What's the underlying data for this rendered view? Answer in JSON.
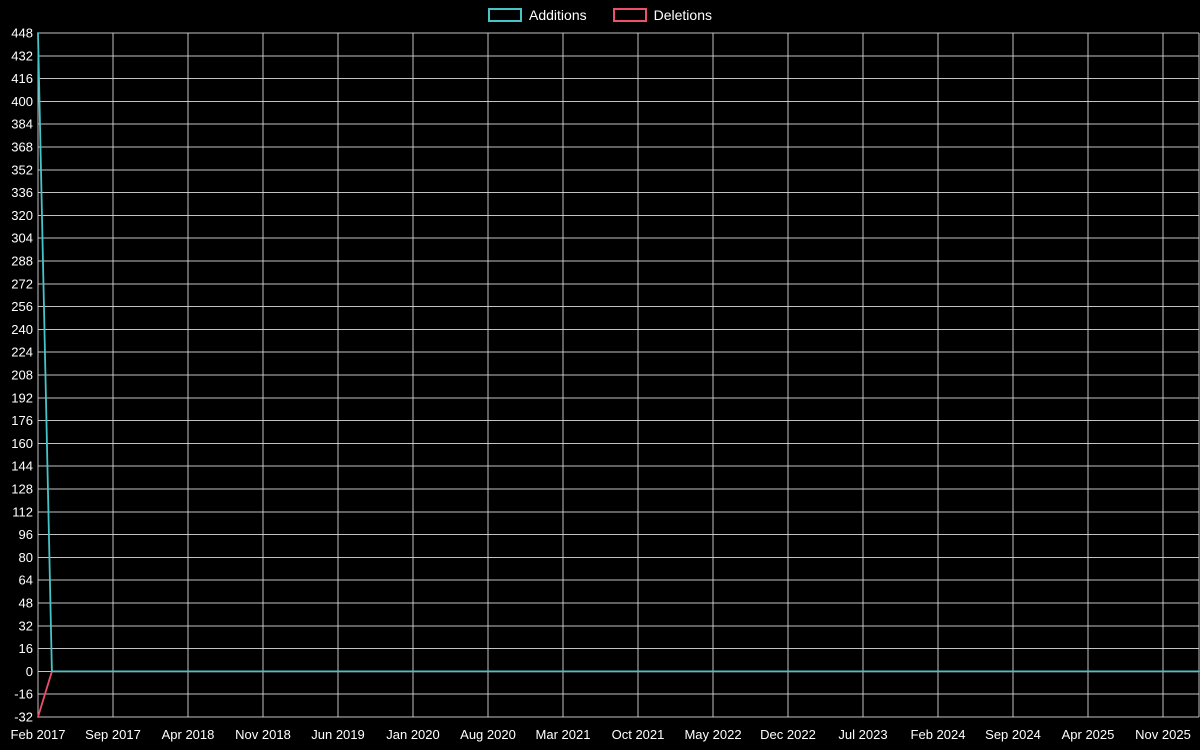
{
  "legend": {
    "items": [
      {
        "label": "Additions",
        "color": "#45c5c8"
      },
      {
        "label": "Deletions",
        "color": "#ee4f6b"
      }
    ]
  },
  "chart_data": {
    "type": "line",
    "title": "",
    "xlabel": "",
    "ylabel": "",
    "legend_position": "top-center",
    "grid": true,
    "background_color": "#000000",
    "grid_color": "#d8d8d8",
    "text_color": "#ffffff",
    "x_axis": {
      "tick_labels": [
        "Feb 2017",
        "Sep 2017",
        "Apr 2018",
        "Nov 2018",
        "Jun 2019",
        "Jan 2020",
        "Aug 2020",
        "Mar 2021",
        "Oct 2021",
        "May 2022",
        "Dec 2022",
        "Jul 2023",
        "Feb 2024",
        "Sep 2024",
        "Apr 2025",
        "Nov 2025"
      ]
    },
    "y_axis": {
      "min": -32,
      "max": 448,
      "tick_step": 16,
      "tick_labels": [
        448,
        432,
        416,
        400,
        384,
        368,
        352,
        336,
        320,
        304,
        288,
        272,
        256,
        240,
        224,
        208,
        192,
        176,
        160,
        144,
        128,
        112,
        96,
        80,
        64,
        48,
        32,
        16,
        0,
        -16,
        -32
      ]
    },
    "series": [
      {
        "name": "Deletions",
        "color": "#ee4f6b",
        "points": [
          [
            0,
            -32
          ],
          [
            0.012,
            0
          ],
          [
            1,
            0
          ]
        ]
      },
      {
        "name": "Additions",
        "color": "#45c5c8",
        "points": [
          [
            0,
            448
          ],
          [
            0.012,
            0
          ],
          [
            1,
            0
          ]
        ]
      }
    ]
  }
}
